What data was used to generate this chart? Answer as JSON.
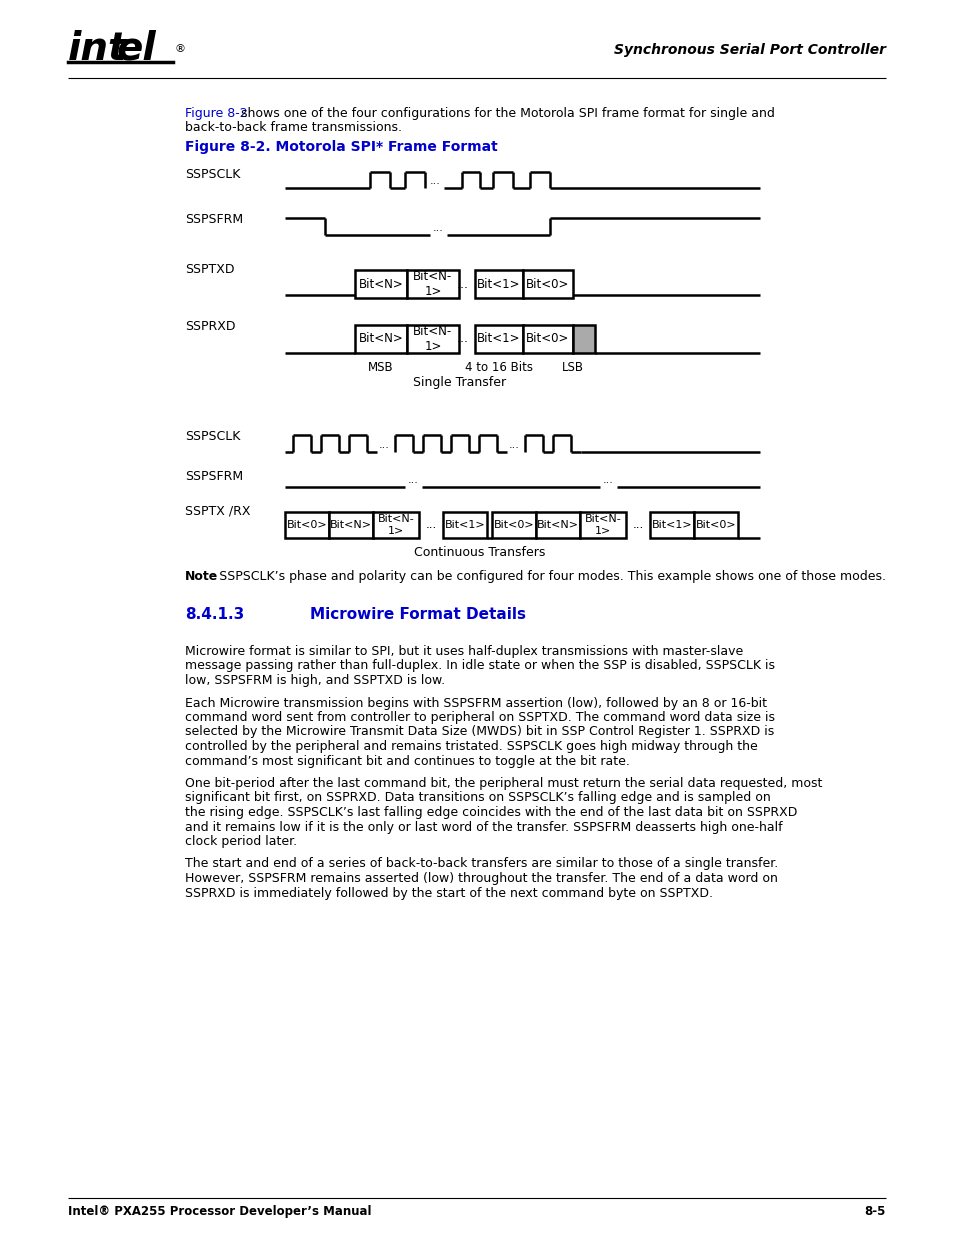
{
  "page_title_right": "Synchronous Serial Port Controller",
  "figure_title": "Figure 8-2. Motorola SPI* Frame Format",
  "figure_title_color": "#0000CC",
  "intro_link_text": "Figure 8-2",
  "intro_rest": " shows one of the four configurations for the Motorola SPI frame format for single and",
  "intro_line2": "back-to-back frame transmissions.",
  "note_bold": "Note",
  "note_rest": ": SSPSCLK’s phase and polarity can be configured for four modes. This example shows one of those modes.",
  "section_number": "8.4.1.3",
  "section_title": "Microwire Format Details",
  "section_color": "#0000CC",
  "body_paragraphs": [
    [
      "Microwire format is similar to SPI, but it uses half-duplex transmissions with master-slave",
      "message passing rather than full-duplex. In idle state or when the SSP is disabled, SSPSCLK is",
      "low, SSPSFRM is high, and SSPTXD is low."
    ],
    [
      "Each Microwire transmission begins with SSPSFRM assertion (low), followed by an 8 or 16-bit",
      "command word sent from controller to peripheral on SSPTXD. The command word data size is",
      "selected by the Microwire Transmit Data Size (MWDS) bit in SSP Control Register 1. SSPRXD is",
      "controlled by the peripheral and remains tristated. SSPSCLK goes high midway through the",
      "command’s most significant bit and continues to toggle at the bit rate."
    ],
    [
      "One bit-period after the last command bit, the peripheral must return the serial data requested, most",
      "significant bit first, on SSPRXD. Data transitions on SSPSCLK’s falling edge and is sampled on",
      "the rising edge. SSPSCLK’s last falling edge coincides with the end of the last data bit on SSPRXD",
      "and it remains low if it is the only or last word of the transfer. SSPSFRM deasserts high one-half",
      "clock period later."
    ],
    [
      "The start and end of a series of back-to-back transfers are similar to those of a single transfer.",
      "However, SSPSFRM remains asserted (low) throughout the transfer. The end of a data word on",
      "SSPRXD is immediately followed by the start of the next command byte on SSPTXD."
    ]
  ],
  "footer_left": "Intel® PXA255 Processor Developer’s Manual",
  "footer_right": "8-5",
  "bg_color": "#ffffff",
  "line_color": "#000000",
  "gray_fill": "#aaaaaa"
}
